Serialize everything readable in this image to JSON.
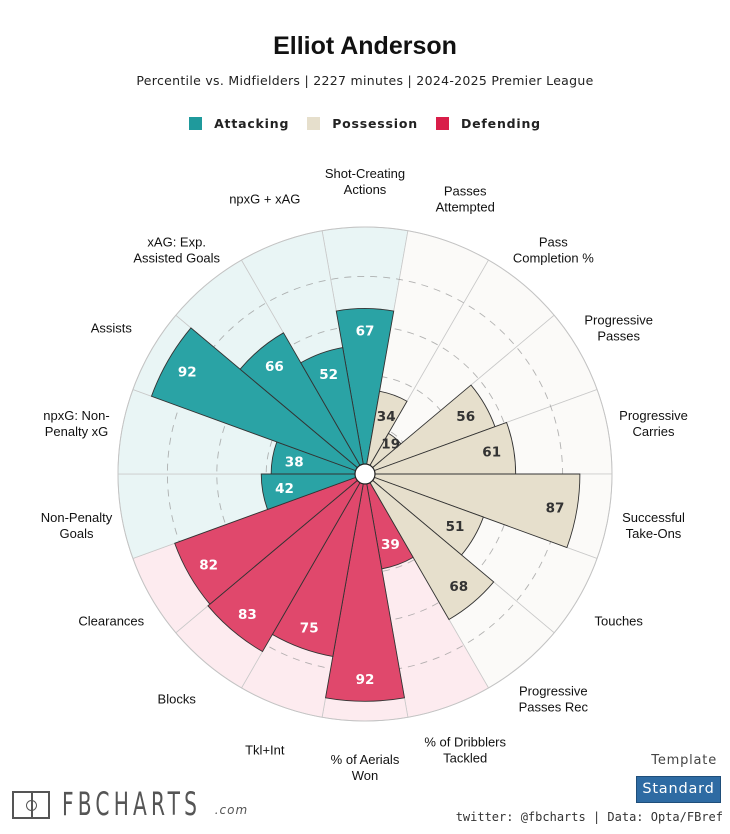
{
  "header": {
    "title": "Elliot Anderson",
    "subtitle": "Percentile vs. Midfielders | 2227 minutes | 2024-2025 Premier League"
  },
  "legend": [
    {
      "label": "Attacking",
      "color": "#1f9a9c"
    },
    {
      "label": "Possession",
      "color": "#e6dfcc"
    },
    {
      "label": "Defending",
      "color": "#d91e49"
    }
  ],
  "chart_data": {
    "type": "radial-bar",
    "title": "Elliot Anderson",
    "subtitle": "Percentile vs. Midfielders | 2227 minutes | 2024-2025 Premier League",
    "range": [
      0,
      100
    ],
    "gridlines": [
      20,
      40,
      60,
      80
    ],
    "legend_position": "top-center",
    "categories": [
      {
        "label": [
          "Shot-Creating",
          "Actions"
        ],
        "value": 67,
        "group": "Attacking"
      },
      {
        "label": [
          "Passes",
          "Attempted"
        ],
        "value": 34,
        "group": "Possession"
      },
      {
        "label": [
          "Pass",
          "Completion %"
        ],
        "value": 19,
        "group": "Possession"
      },
      {
        "label": [
          "Progressive",
          "Passes"
        ],
        "value": 56,
        "group": "Possession"
      },
      {
        "label": [
          "Progressive",
          "Carries"
        ],
        "value": 61,
        "group": "Possession"
      },
      {
        "label": [
          "Successful",
          "Take-Ons"
        ],
        "value": 87,
        "group": "Possession"
      },
      {
        "label": [
          "Touches"
        ],
        "value": 51,
        "group": "Possession"
      },
      {
        "label": [
          "Progressive",
          "Passes Rec"
        ],
        "value": 68,
        "group": "Possession"
      },
      {
        "label": [
          "% of Dribblers",
          "Tackled"
        ],
        "value": 39,
        "group": "Defending"
      },
      {
        "label": [
          "% of Aerials",
          "Won"
        ],
        "value": 92,
        "group": "Defending"
      },
      {
        "label": [
          "Tkl+Int"
        ],
        "value": 75,
        "group": "Defending"
      },
      {
        "label": [
          "Blocks"
        ],
        "value": 83,
        "group": "Defending"
      },
      {
        "label": [
          "Clearances"
        ],
        "value": 82,
        "group": "Defending"
      },
      {
        "label": [
          "Non-Penalty",
          "Goals"
        ],
        "value": 42,
        "group": "Attacking"
      },
      {
        "label": [
          "npxG: Non-",
          "Penalty xG"
        ],
        "value": 38,
        "group": "Attacking"
      },
      {
        "label": [
          "Assists"
        ],
        "value": 92,
        "group": "Attacking"
      },
      {
        "label": [
          "xAG: Exp.",
          "Assisted Goals"
        ],
        "value": 66,
        "group": "Attacking"
      },
      {
        "label": [
          "npxG + xAG"
        ],
        "value": 52,
        "group": "Attacking"
      }
    ],
    "group_colors": {
      "Attacking": {
        "bar": "#2aa3a5",
        "bg": "#e9f5f5",
        "text": "#ffffff"
      },
      "Possession": {
        "bar": "#e6dfcc",
        "bg": "#fbfaf8",
        "text": "#333333"
      },
      "Defending": {
        "bar": "#e0486c",
        "bg": "#fdebef",
        "text": "#ffffff"
      }
    }
  },
  "footer": {
    "logo_text": "FBCHARTS",
    "logo_suffix": ".com",
    "template_label": "Template",
    "template_button": "Standard",
    "credits": "twitter: @fbcharts | Data: Opta/FBref"
  }
}
